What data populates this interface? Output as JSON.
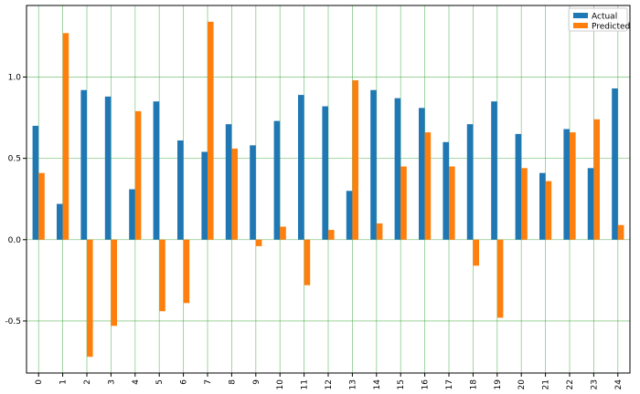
{
  "chart_data": {
    "type": "bar",
    "categories": [
      "0",
      "1",
      "2",
      "3",
      "4",
      "5",
      "6",
      "7",
      "8",
      "9",
      "10",
      "11",
      "12",
      "13",
      "14",
      "15",
      "16",
      "17",
      "18",
      "19",
      "20",
      "21",
      "22",
      "23",
      "24"
    ],
    "series": [
      {
        "name": "Actual",
        "color": "#1f77b4",
        "values": [
          0.7,
          0.22,
          0.92,
          0.88,
          0.31,
          0.85,
          0.61,
          0.54,
          0.71,
          0.58,
          0.73,
          0.89,
          0.82,
          0.3,
          0.92,
          0.87,
          0.81,
          0.6,
          0.71,
          0.85,
          0.65,
          0.41,
          0.68,
          0.44,
          0.93
        ]
      },
      {
        "name": "Predicted",
        "color": "#ff7f0e",
        "values": [
          0.41,
          1.27,
          -0.72,
          -0.53,
          0.79,
          -0.44,
          -0.39,
          1.34,
          0.56,
          -0.04,
          0.08,
          -0.28,
          0.06,
          0.98,
          0.1,
          0.45,
          0.66,
          0.45,
          -0.16,
          -0.48,
          0.44,
          0.36,
          0.66,
          0.74,
          0.09
        ]
      }
    ],
    "yticks": [
      "-0.5",
      "0.0",
      "0.5",
      "1.0"
    ],
    "ytick_values": [
      -0.5,
      0.0,
      0.5,
      1.0
    ],
    "ylim": [
      -0.82,
      1.44
    ],
    "grid": true,
    "grid_color": "#2ca02c",
    "legend_position": "top-right",
    "title": "",
    "xlabel": "",
    "ylabel": ""
  }
}
